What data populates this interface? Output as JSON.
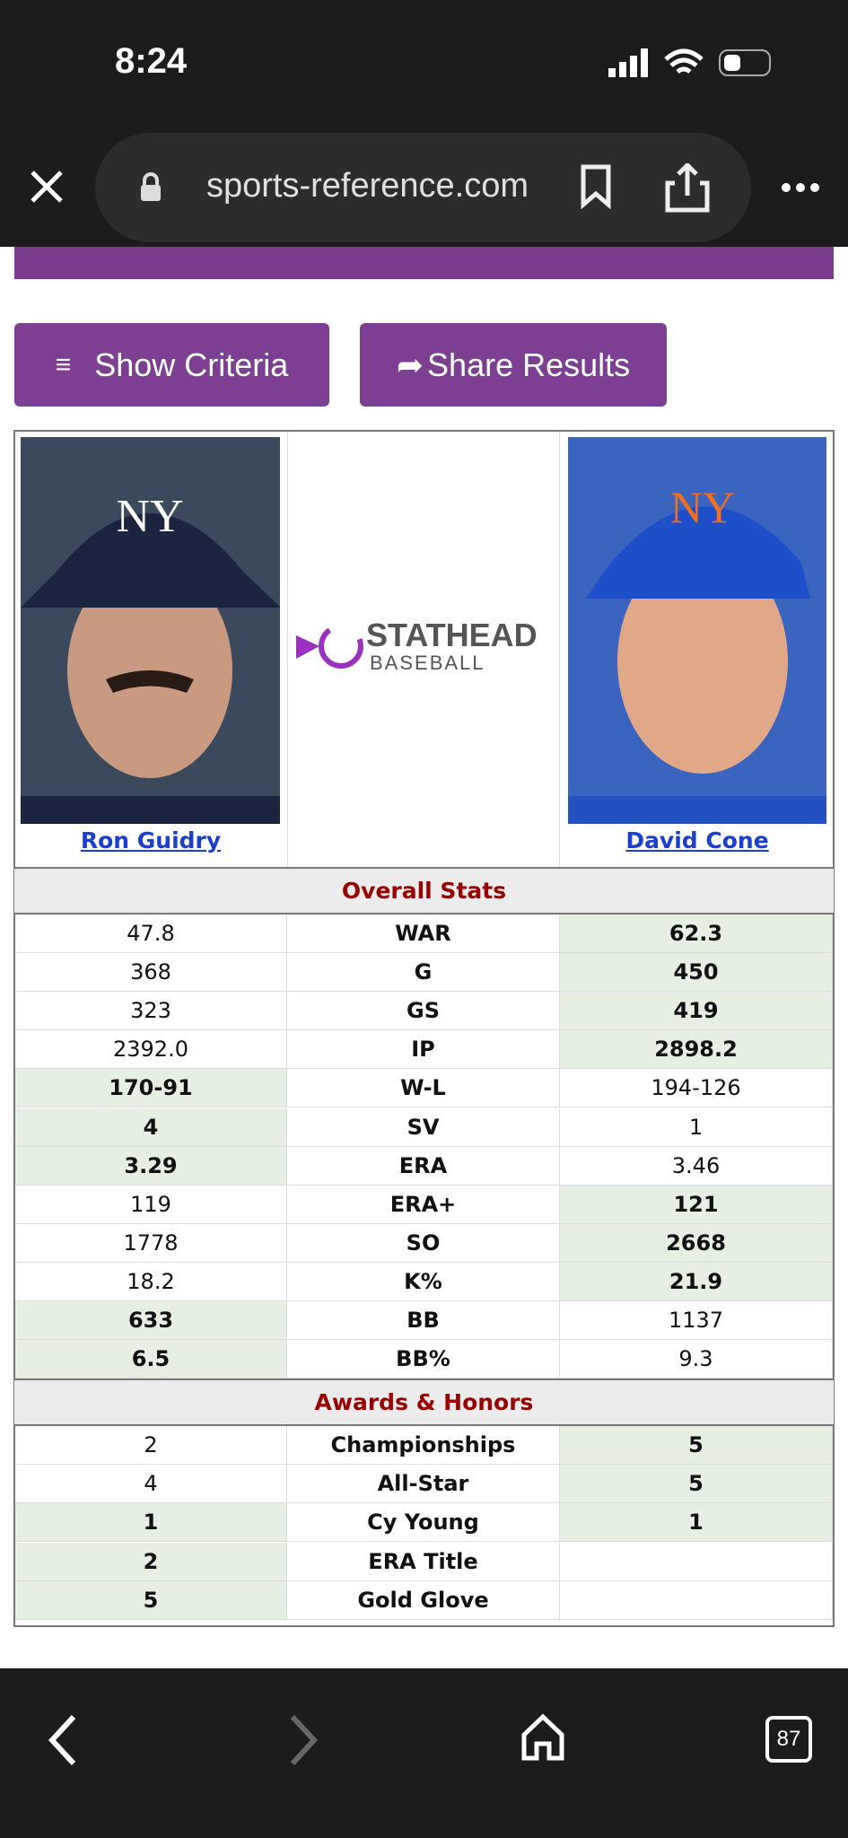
{
  "status_bar": {
    "time": "8:24"
  },
  "browser": {
    "url": "sports-reference.com",
    "tab_count": "87"
  },
  "buttons": [
    "Show Criteria",
    "Share Results"
  ],
  "comparison": {
    "players": [
      "Ron Guidry",
      "David Cone"
    ],
    "logo": {
      "name": "STATHEAD",
      "sub": "BASEBALL"
    },
    "sections": [
      {
        "title": "Overall Stats",
        "rows": [
          {
            "left": "47.8",
            "stat": "WAR",
            "right": "62.3",
            "leader": "right"
          },
          {
            "left": "368",
            "stat": "G",
            "right": "450",
            "leader": "right"
          },
          {
            "left": "323",
            "stat": "GS",
            "right": "419",
            "leader": "right"
          },
          {
            "left": "2392.0",
            "stat": "IP",
            "right": "2898.2",
            "leader": "right"
          },
          {
            "left": "170-91",
            "stat": "W-L",
            "right": "194-126",
            "leader": "left"
          },
          {
            "left": "4",
            "stat": "SV",
            "right": "1",
            "leader": "left"
          },
          {
            "left": "3.29",
            "stat": "ERA",
            "right": "3.46",
            "leader": "left"
          },
          {
            "left": "119",
            "stat": "ERA+",
            "right": "121",
            "leader": "right"
          },
          {
            "left": "1778",
            "stat": "SO",
            "right": "2668",
            "leader": "right"
          },
          {
            "left": "18.2",
            "stat": "K%",
            "right": "21.9",
            "leader": "right"
          },
          {
            "left": "633",
            "stat": "BB",
            "right": "1137",
            "leader": "left"
          },
          {
            "left": "6.5",
            "stat": "BB%",
            "right": "9.3",
            "leader": "left"
          }
        ]
      },
      {
        "title": "Awards & Honors",
        "rows": [
          {
            "left": "2",
            "stat": "Championships",
            "right": "5",
            "leader": "right"
          },
          {
            "left": "4",
            "stat": "All-Star",
            "right": "5",
            "leader": "right"
          },
          {
            "left": "1",
            "stat": "Cy Young",
            "right": "1",
            "leader": "both"
          },
          {
            "left": "2",
            "stat": "ERA Title",
            "right": null,
            "leader": "left"
          },
          {
            "left": "5",
            "stat": "Gold Glove",
            "right": null,
            "leader": "left"
          }
        ]
      }
    ]
  }
}
